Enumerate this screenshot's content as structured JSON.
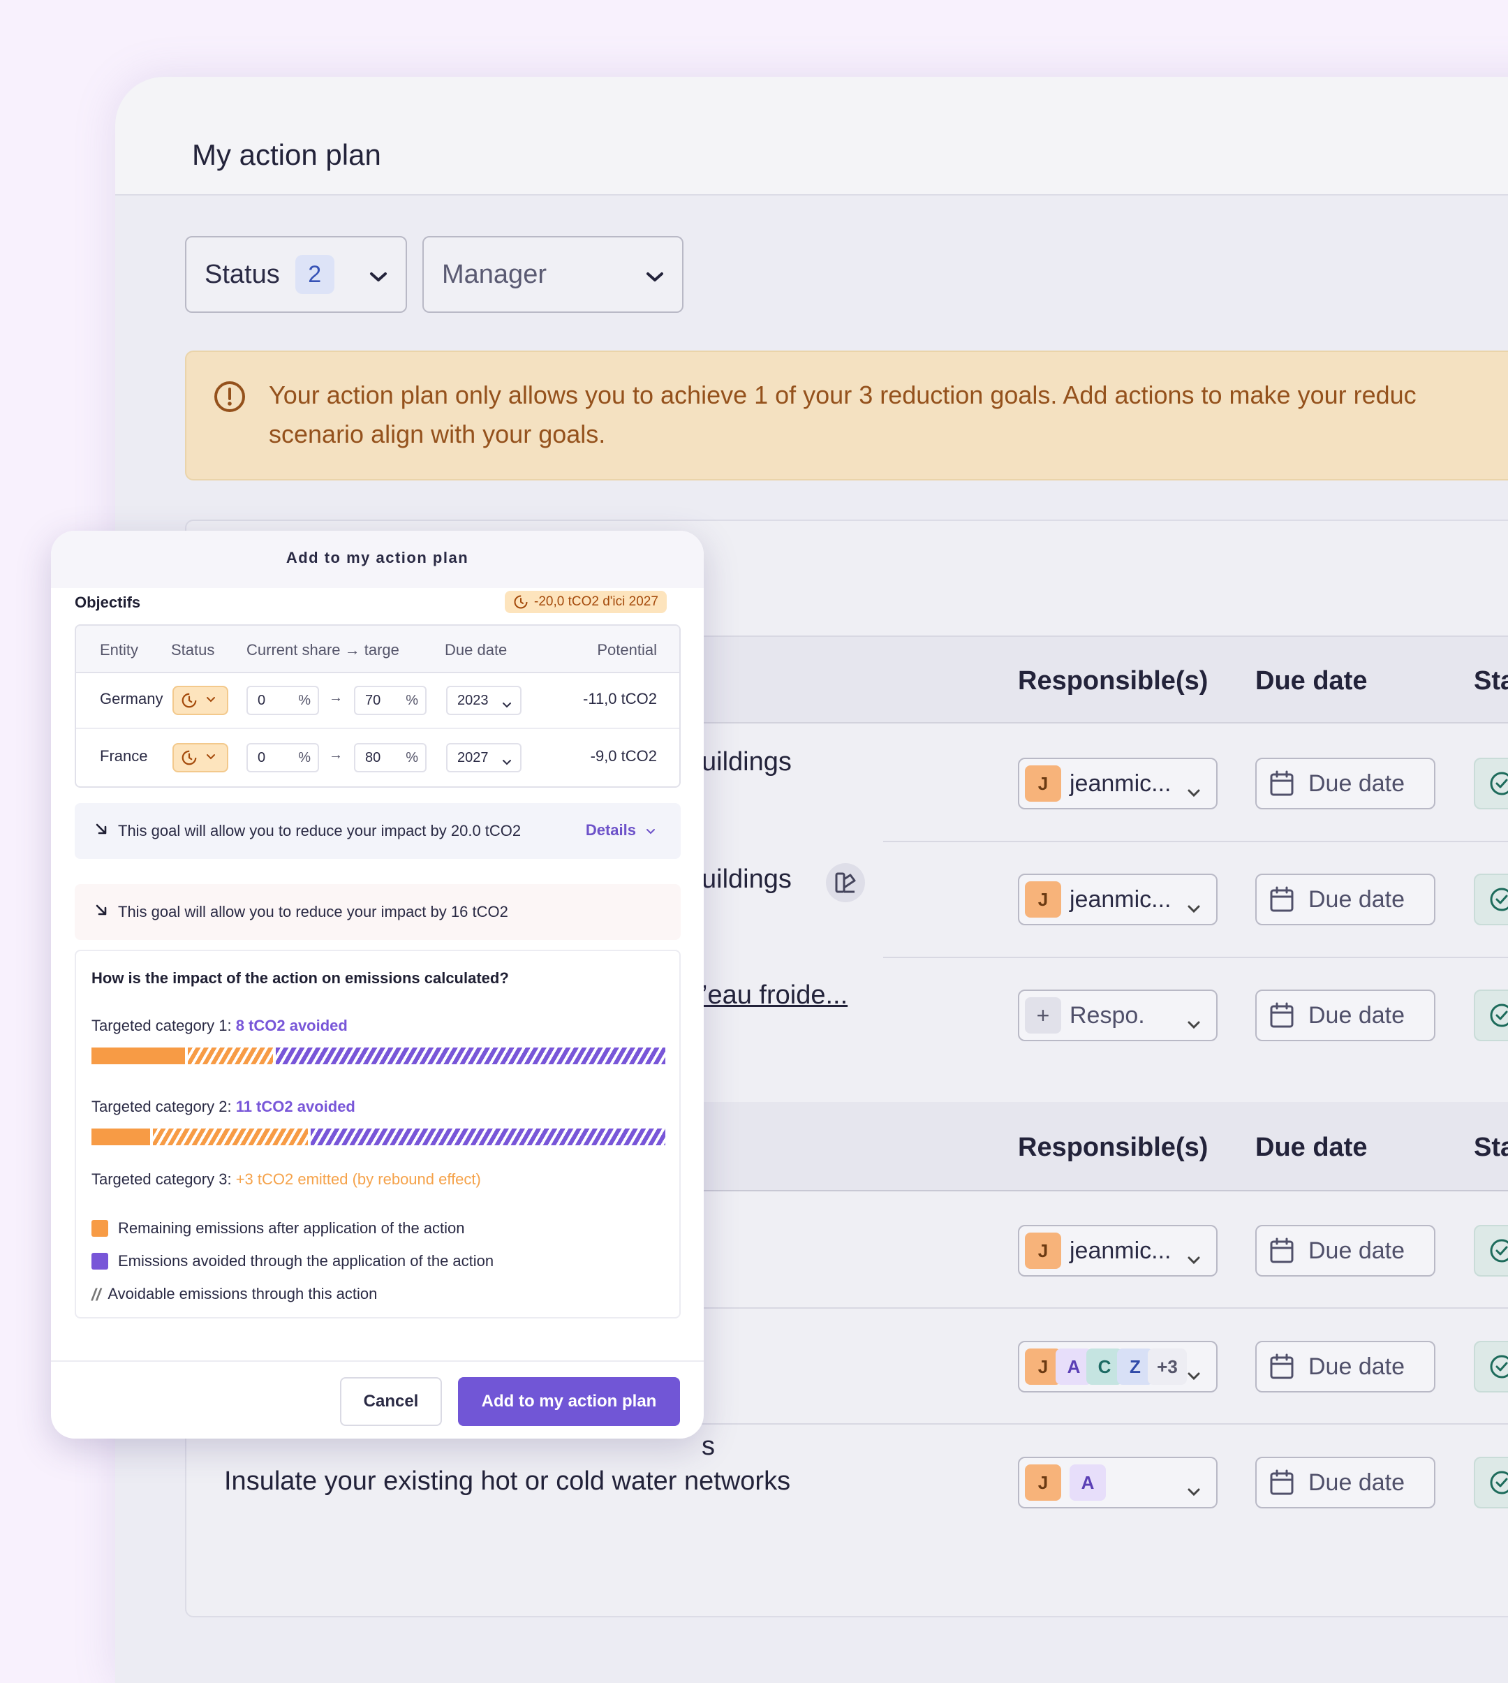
{
  "page": {
    "title": "My action plan",
    "filters": {
      "status_label": "Status",
      "status_count": "2",
      "manager_label": "Manager"
    },
    "banner": {
      "line1": "Your action plan only allows you to achieve 1 of your 3 reduction goals. Add actions to make your reduc",
      "line2": "scenario align with your goals."
    },
    "section1": {
      "headers": {
        "responsible": "Responsible(s)",
        "due": "Due date",
        "status": "Status"
      },
      "rows": [
        {
          "title": "uildings",
          "responsible": "jeanmic...",
          "avatar": "J",
          "due": "Due date"
        },
        {
          "title": "uildings",
          "responsible": "jeanmic...",
          "avatar": "J",
          "due": "Due date"
        },
        {
          "title": "’eau froide...",
          "responsible": "Respo.",
          "avatar": "+",
          "due": "Due date"
        }
      ]
    },
    "section2": {
      "headers": {
        "responsible": "Responsible(s)",
        "due": "Due date",
        "status": "Statut"
      },
      "rows": [
        {
          "title": "",
          "responsible": "jeanmic...",
          "avatar": "J",
          "due": "Due date"
        },
        {
          "title": "s",
          "avatars": [
            "J",
            "A",
            "C",
            "Z",
            "+3"
          ],
          "due": "Due date"
        },
        {
          "title": "Insulate your existing hot or cold water networks",
          "avatars": [
            "J",
            "A"
          ],
          "due": "Due date"
        }
      ]
    }
  },
  "modal": {
    "title": "Add to my action plan",
    "objectives_label": "Objectifs",
    "goal_badge": "-20,0 tCO2 d'ici 2027",
    "table": {
      "headers": [
        "Entity",
        "Status",
        "Current share → targe",
        "Due date",
        "Potential"
      ],
      "rows": [
        {
          "entity": "Germany",
          "current": "0",
          "target": "70",
          "year": "2023",
          "potential": "-11,0 tCO2"
        },
        {
          "entity": "France",
          "current": "0",
          "target": "80",
          "year": "2027",
          "potential": "-9,0 tCO2"
        }
      ],
      "pct": "%",
      "arrow": "→"
    },
    "info1": "This goal will allow you to reduce your impact by 20.0 tCO2",
    "details": "Details",
    "info2": "This goal will allow you to reduce your impact by 16 tCO2",
    "calc": {
      "question": "How is the impact of the action on emissions calculated?",
      "cat1_label": "Targeted category 1: ",
      "cat1_value": "8 tCO2 avoided",
      "cat2_label": "Targeted category 2: ",
      "cat2_value": "11 tCO2 avoided",
      "cat3_label": "Targeted category 3: ",
      "cat3_value": "+3 tCO2 emitted (by rebound effect)",
      "legend_remaining": "Remaining emissions after application of the action",
      "legend_avoided": "Emissions avoided through the application of the action",
      "legend_avoidable": "Avoidable emissions through this action"
    },
    "cancel": "Cancel",
    "submit": "Add to my action plan"
  },
  "colors": {
    "accent": "#7156d6",
    "warning_bg": "#f4e1c1",
    "orange": "#f79b45",
    "purple": "#7856d8"
  },
  "icons": [
    "warning-icon",
    "chevron-down-icon",
    "calendar-icon",
    "check-circle-icon",
    "clock-icon",
    "arrow-down-right-icon",
    "plus-icon",
    "category-icon"
  ]
}
